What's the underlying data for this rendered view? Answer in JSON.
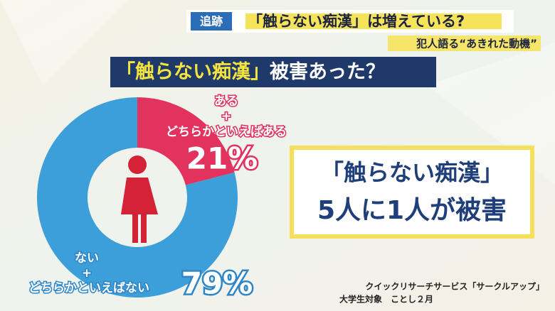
{
  "header": {
    "tag": "追跡",
    "headline": "「触らない痴漢」は増えている?",
    "subhead": "犯人語る“あきれた動機”"
  },
  "chart_data": {
    "type": "donut",
    "title": "「触らない痴漢」",
    "title_suffix": "被害あった？",
    "categories": [
      [
        "ある",
        "+",
        "どちらかといえばある"
      ],
      [
        "ない",
        "+",
        "どちらかといえばない"
      ]
    ],
    "values": [
      21,
      79
    ],
    "value_labels": [
      "21%",
      "79%"
    ],
    "colors": [
      "#e2325e",
      "#3c9fd9"
    ]
  },
  "callout": [
    "「触らない痴漢」",
    "5人に1人が被害"
  ],
  "source": [
    "クイックリサーチサービス「サークルアップ」",
    "大学生対象　ことし２月"
  ]
}
